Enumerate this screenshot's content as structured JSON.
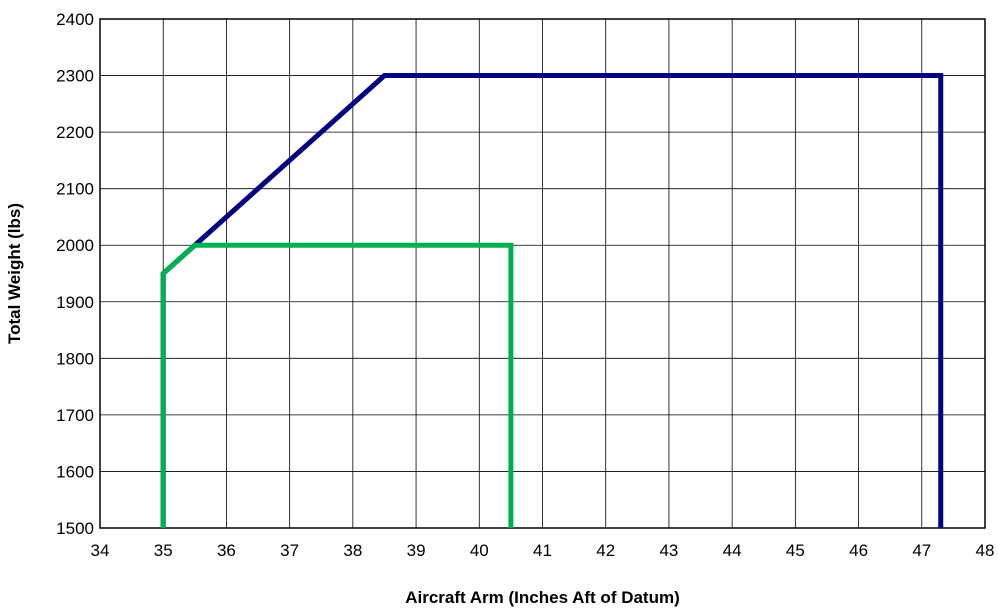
{
  "chart_data": {
    "type": "line",
    "title": "",
    "xlabel": "Aircraft Arm (Inches Aft of Datum)",
    "ylabel": "Total Weight (lbs)",
    "xlim": [
      34,
      48
    ],
    "ylim": [
      1500,
      2400
    ],
    "x_ticks": [
      34,
      35,
      36,
      37,
      38,
      39,
      40,
      41,
      42,
      43,
      44,
      45,
      46,
      47,
      48
    ],
    "y_ticks": [
      1500,
      1600,
      1700,
      1800,
      1900,
      2000,
      2100,
      2200,
      2300,
      2400
    ],
    "grid": true,
    "legend": "none",
    "series": [
      {
        "color": "#000080",
        "points": [
          {
            "x": 35.0,
            "y": 1500
          },
          {
            "x": 35.0,
            "y": 1950
          },
          {
            "x": 38.5,
            "y": 2300
          },
          {
            "x": 47.3,
            "y": 2300
          },
          {
            "x": 47.3,
            "y": 1500
          }
        ]
      },
      {
        "color": "#00B050",
        "points": [
          {
            "x": 35.0,
            "y": 1500
          },
          {
            "x": 35.0,
            "y": 1950
          },
          {
            "x": 35.5,
            "y": 2000
          },
          {
            "x": 40.5,
            "y": 2000
          },
          {
            "x": 40.5,
            "y": 1500
          }
        ]
      }
    ]
  }
}
